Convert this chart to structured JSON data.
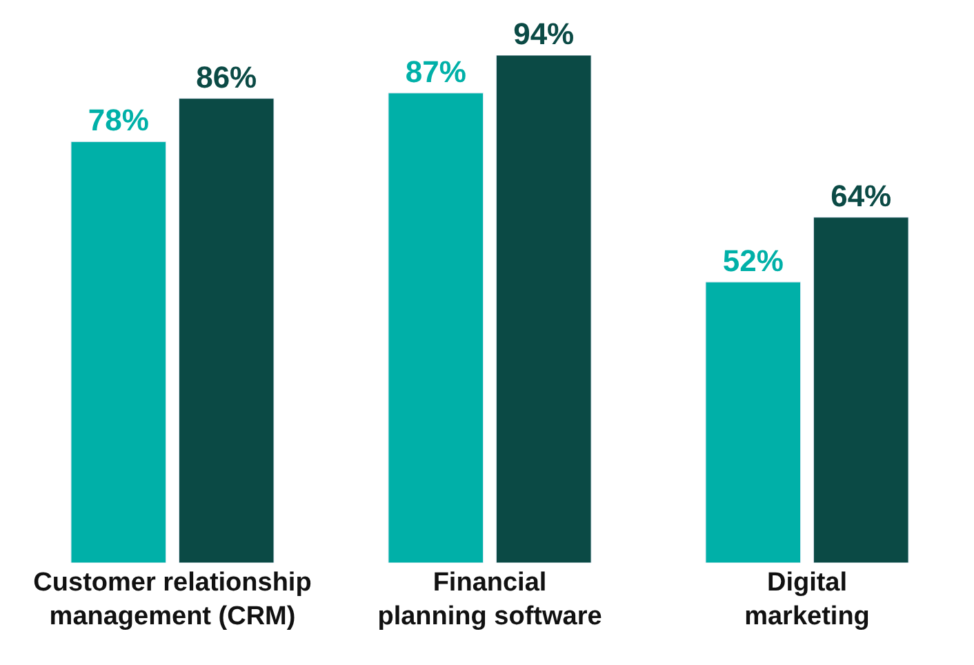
{
  "chart_data": {
    "type": "bar",
    "categories": [
      "Customer relationship management (CRM)",
      "Financial planning software",
      "Digital marketing"
    ],
    "series": [
      {
        "color": "#00b0a8",
        "values": [
          78,
          87,
          52
        ],
        "value_labels": [
          "78%",
          "87%",
          "52%"
        ]
      },
      {
        "color": "#0b4a45",
        "values": [
          86,
          94,
          64
        ],
        "value_labels": [
          "86%",
          "94%",
          "64%"
        ]
      }
    ],
    "tick_labels": "x"
  }
}
